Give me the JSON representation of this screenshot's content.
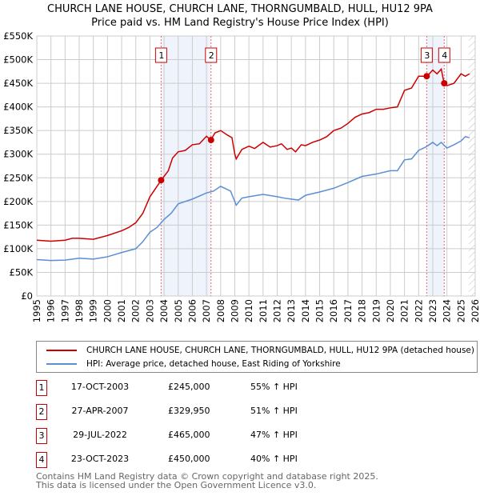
{
  "chart_data": {
    "type": "line",
    "title": "CHURCH LANE HOUSE, CHURCH LANE, THORNGUMBALD, HULL, HU12 9PA",
    "subtitle": "Price paid vs. HM Land Registry's House Price Index (HPI)",
    "xlim": [
      1995,
      2026
    ],
    "ylim": [
      0,
      550000
    ],
    "x_ticks": [
      "1995",
      "1996",
      "1997",
      "1998",
      "1999",
      "2000",
      "2001",
      "2002",
      "2003",
      "2004",
      "2005",
      "2006",
      "2007",
      "2008",
      "2009",
      "2010",
      "2011",
      "2012",
      "2013",
      "2014",
      "2015",
      "2016",
      "2017",
      "2018",
      "2019",
      "2020",
      "2021",
      "2022",
      "2023",
      "2024",
      "2025",
      "2026"
    ],
    "y_ticks": [
      "£0",
      "£50K",
      "£100K",
      "£150K",
      "£200K",
      "£250K",
      "£300K",
      "£350K",
      "£400K",
      "£450K",
      "£500K",
      "£550K"
    ],
    "grid": true,
    "series": [
      {
        "name": "CHURCH LANE HOUSE, CHURCH LANE, THORNGUMBALD, HULL, HU12 9PA (detached house)",
        "color": "#cc0000",
        "x": [
          1995,
          1996,
          1997,
          1997.5,
          1998,
          1999,
          2000,
          2001,
          2001.5,
          2002,
          2002.5,
          2003,
          2003.8,
          2004.3,
          2004.6,
          2005,
          2005.5,
          2006,
          2006.5,
          2007,
          2007.3,
          2007.6,
          2008,
          2008.5,
          2008.8,
          2009,
          2009.1,
          2009.5,
          2010,
          2010.4,
          2011,
          2011.5,
          2012,
          2012.3,
          2012.7,
          2013,
          2013.3,
          2013.7,
          2014,
          2014.5,
          2015,
          2015.5,
          2016,
          2016.5,
          2017,
          2017.5,
          2018,
          2018.5,
          2019,
          2019.5,
          2020,
          2020.5,
          2021,
          2021.5,
          2022,
          2022.6,
          2023,
          2023.3,
          2023.6,
          2023.8,
          2024,
          2024.5,
          2025,
          2025.3,
          2025.6
        ],
        "y": [
          118000,
          116000,
          118000,
          122000,
          122000,
          120000,
          128000,
          138000,
          145000,
          155000,
          175000,
          210000,
          245000,
          265000,
          292000,
          305000,
          308000,
          320000,
          322000,
          338000,
          330000,
          345000,
          350000,
          340000,
          335000,
          300000,
          290000,
          310000,
          317000,
          312000,
          325000,
          315000,
          318000,
          322000,
          310000,
          313000,
          305000,
          320000,
          318000,
          325000,
          330000,
          337000,
          350000,
          355000,
          365000,
          378000,
          385000,
          388000,
          395000,
          395000,
          398000,
          400000,
          435000,
          440000,
          465000,
          465000,
          478000,
          470000,
          480000,
          450000,
          445000,
          450000,
          470000,
          465000,
          470000
        ]
      },
      {
        "name": "HPI: Average price, detached house, East Riding of Yorkshire",
        "color": "#5b8fd4",
        "x": [
          1995,
          1996,
          1997,
          1998,
          1999,
          2000,
          2001,
          2002,
          2002.5,
          2003,
          2003.5,
          2004,
          2004.5,
          2005,
          2006,
          2007,
          2007.5,
          2008,
          2008.7,
          2009,
          2009.1,
          2009.5,
          2010,
          2011,
          2012,
          2012.5,
          2013,
          2013.5,
          2014,
          2015,
          2016,
          2017,
          2018,
          2019,
          2020,
          2020.5,
          2021,
          2021.5,
          2022,
          2022.5,
          2023,
          2023.3,
          2023.6,
          2024,
          2024.5,
          2025,
          2025.3,
          2025.6
        ],
        "y": [
          77000,
          75000,
          76000,
          80000,
          78000,
          83000,
          92000,
          100000,
          115000,
          135000,
          145000,
          162000,
          175000,
          195000,
          205000,
          218000,
          222000,
          232000,
          222000,
          200000,
          192000,
          207000,
          210000,
          215000,
          210000,
          207000,
          205000,
          203000,
          213000,
          220000,
          228000,
          240000,
          253000,
          258000,
          265000,
          265000,
          288000,
          290000,
          308000,
          315000,
          325000,
          318000,
          325000,
          313000,
          320000,
          328000,
          337000,
          335000
        ]
      }
    ],
    "transactions": [
      {
        "label": "1",
        "date": "17-OCT-2003",
        "x": 2003.79,
        "price": "£245,000",
        "value": 245000,
        "hpi": "55% ↑ HPI"
      },
      {
        "label": "2",
        "date": "27-APR-2007",
        "x": 2007.32,
        "price": "£329,950",
        "value": 329950,
        "hpi": "51% ↑ HPI"
      },
      {
        "label": "3",
        "date": "29-JUL-2022",
        "x": 2022.57,
        "price": "£465,000",
        "value": 465000,
        "hpi": "47% ↑ HPI"
      },
      {
        "label": "4",
        "date": "23-OCT-2023",
        "x": 2023.81,
        "price": "£450,000",
        "value": 450000,
        "hpi": "40% ↑ HPI"
      }
    ],
    "shaded_ranges": [
      [
        2003.79,
        2007.32
      ],
      [
        2022.57,
        2023.81
      ]
    ],
    "future_hatch_from": 2025.55,
    "legend_position": "below"
  },
  "footer": {
    "line1": "Contains HM Land Registry data © Crown copyright and database right 2025.",
    "line2": "This data is licensed under the Open Government Licence v3.0."
  }
}
